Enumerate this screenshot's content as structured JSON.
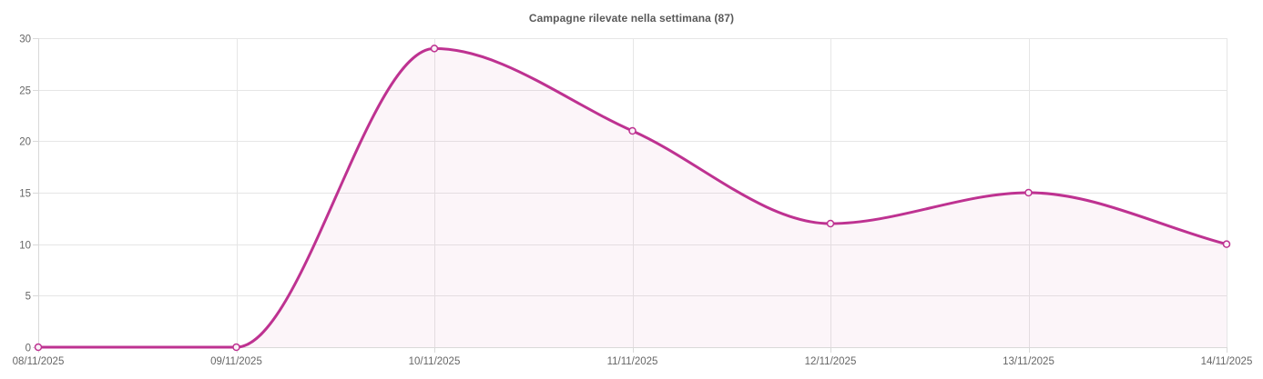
{
  "chart_data": {
    "type": "line",
    "title": "Campagne rilevate nella settimana (87)",
    "total_in_title": 87,
    "categories": [
      "08/11/2025",
      "09/11/2025",
      "10/11/2025",
      "11/11/2025",
      "12/11/2025",
      "13/11/2025",
      "14/11/2025"
    ],
    "values": [
      0,
      0,
      29,
      21,
      12,
      15,
      10
    ],
    "xlabel": "",
    "ylabel": "",
    "ylim": [
      0,
      30
    ],
    "yticks": [
      0,
      5,
      10,
      15,
      20,
      25,
      30
    ],
    "grid": true,
    "legend": "none",
    "curve": "smooth",
    "colors": {
      "line": "#BE3291",
      "area": "rgba(190, 50, 145, 0.05)",
      "marker_fill": "#FAF3F8",
      "grid": "#E6E6E6",
      "axis": "#D9D9D9",
      "tick_text": "#666666",
      "title_text": "#595959",
      "background": "#FFFFFF"
    }
  }
}
